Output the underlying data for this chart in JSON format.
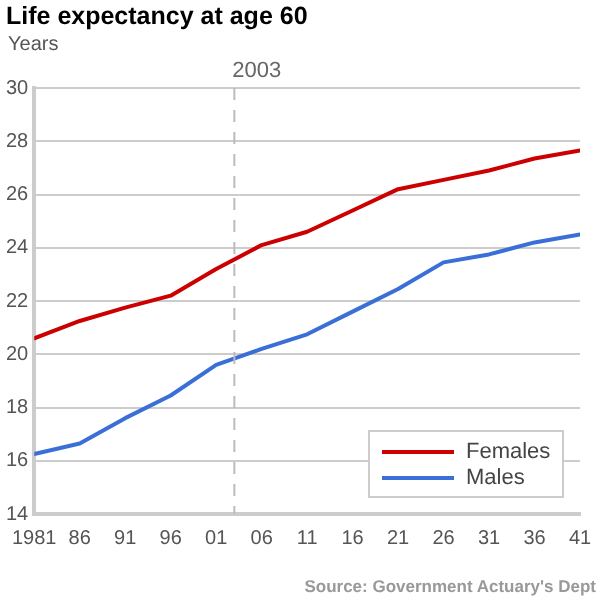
{
  "chart_data": {
    "type": "line",
    "title": "Life expectancy at age 60",
    "ylabel": "Years",
    "x": [
      1981,
      1986,
      1991,
      1996,
      2001,
      2006,
      2011,
      2016,
      2021,
      2026,
      2031,
      2036,
      2041
    ],
    "series": [
      {
        "name": "Females",
        "color": "#cc0000",
        "values": [
          20.6,
          21.25,
          21.75,
          22.2,
          23.2,
          24.1,
          24.6,
          25.4,
          26.2,
          26.55,
          26.9,
          27.35,
          27.65
        ]
      },
      {
        "name": "Males",
        "color": "#3a6fd8",
        "values": [
          16.25,
          16.65,
          17.6,
          18.45,
          19.6,
          20.2,
          20.75,
          21.6,
          22.45,
          23.45,
          23.75,
          24.2,
          24.5
        ]
      }
    ],
    "xlim": [
      1981,
      2041
    ],
    "xticks": [
      1981,
      {
        "value": 1986,
        "label": "86"
      },
      {
        "value": 1991,
        "label": "91"
      },
      {
        "value": 1996,
        "label": "96"
      },
      {
        "value": 2001,
        "label": "01"
      },
      {
        "value": 2006,
        "label": "06"
      },
      {
        "value": 2011,
        "label": "11"
      },
      {
        "value": 2016,
        "label": "16"
      },
      {
        "value": 2021,
        "label": "21"
      },
      {
        "value": 2026,
        "label": "26"
      },
      {
        "value": 2031,
        "label": "31"
      },
      {
        "value": 2036,
        "label": "36"
      },
      {
        "value": 2041,
        "label": "41"
      }
    ],
    "ylim": [
      14,
      30
    ],
    "yticks": [
      14,
      16,
      18,
      20,
      22,
      24,
      26,
      28,
      30
    ],
    "ref_lines": [
      {
        "axis": "x",
        "value": 2003,
        "label": "2003",
        "color": "#bbbbbb",
        "line_style": "dashed"
      }
    ],
    "annotations": [
      "Source: Government Actuary's Dept"
    ],
    "grid": "y",
    "legend": "bottom right",
    "marker": "none",
    "line_style": "solid"
  }
}
